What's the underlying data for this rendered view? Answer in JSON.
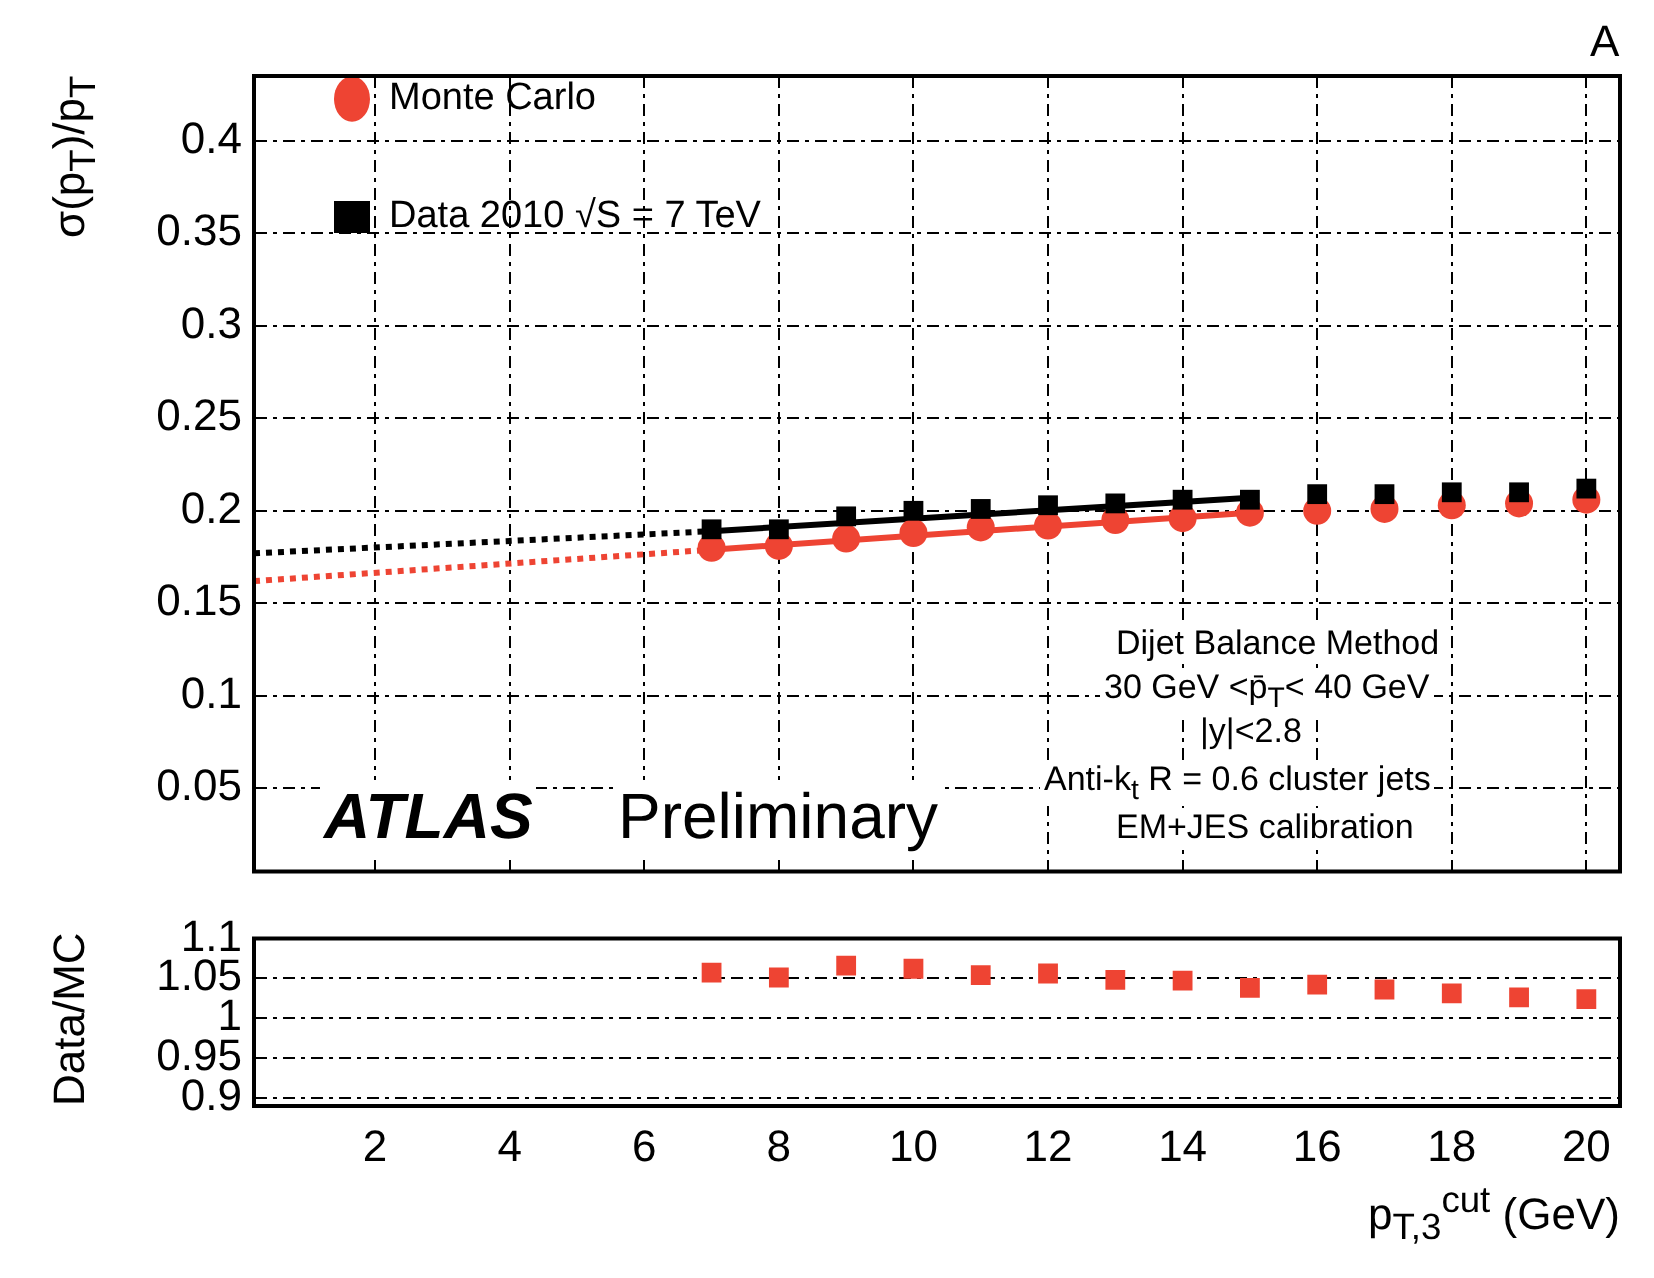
{
  "chart_data": [
    {
      "type": "scatter",
      "ylabel": "σ(p$_{T}$)/p$_{T}$",
      "xlim": [
        0.2,
        20.5
      ],
      "xticks": [
        2,
        4,
        6,
        8,
        10,
        12,
        14,
        16,
        18,
        20
      ],
      "ylim": [
        0.005,
        0.435
      ],
      "yticks": [
        0.05,
        0.1,
        0.15,
        0.2,
        0.25,
        0.3,
        0.35,
        0.4
      ],
      "grid": true,
      "tick_labels": "y",
      "legend": "top left",
      "annotations": [
        "A",
        "ATLAS",
        "Preliminary",
        "Dijet Balance Method",
        "30 GeV <p̄$_{T}$< 40 GeV",
        "|y|<2.8",
        "Anti-k$_{t}$ R = 0.6 cluster jets",
        "EM+JES calibration"
      ],
      "x": [
        7,
        8,
        9,
        10,
        11,
        12,
        13,
        14,
        15,
        16,
        17,
        18,
        19,
        20
      ],
      "series": [
        {
          "type": "line",
          "color": "#ee4433",
          "line_style": "dotted",
          "marker": "none",
          "x": [
            0.2,
            7
          ],
          "values": [
            0.162,
            0.179
          ]
        },
        {
          "type": "line",
          "color": "#ee4433",
          "line_style": "solid",
          "marker": "none",
          "x": [
            7,
            15
          ],
          "values": [
            0.179,
            0.199
          ]
        },
        {
          "type": "line",
          "color": "#000000",
          "line_style": "dotted",
          "marker": "none",
          "x": [
            0.2,
            7
          ],
          "values": [
            0.177,
            0.189
          ]
        },
        {
          "type": "line",
          "color": "#000000",
          "line_style": "solid",
          "marker": "none",
          "x": [
            7,
            15
          ],
          "values": [
            0.189,
            0.207
          ]
        },
        {
          "name": "Monte Carlo",
          "type": "scatter",
          "color": "#ee4433",
          "marker": "circle",
          "values": [
            0.18,
            0.181,
            0.185,
            0.188,
            0.191,
            0.192,
            0.195,
            0.196,
            0.199,
            0.2,
            0.201,
            0.203,
            0.204,
            0.206
          ]
        },
        {
          "name": "Data 2010 √S = 7 TeV",
          "type": "scatter",
          "color": "#000000",
          "marker": "square",
          "values": [
            0.19,
            0.19,
            0.197,
            0.2,
            0.201,
            0.203,
            0.204,
            0.206,
            0.206,
            0.209,
            0.209,
            0.21,
            0.21,
            0.212
          ]
        }
      ]
    },
    {
      "type": "scatter",
      "ylabel": "Data/MC",
      "xlabel": "p$_{T,3}$$^{cut}$ (GeV)",
      "xlim": [
        0.2,
        20.5
      ],
      "xticks": [
        2,
        4,
        6,
        8,
        10,
        12,
        14,
        16,
        18,
        20
      ],
      "ylim": [
        0.89,
        1.1
      ],
      "yticks": [
        0.9,
        0.95,
        1,
        1.05,
        1.1
      ],
      "grid": "y",
      "x": [
        7,
        8,
        9,
        10,
        11,
        12,
        13,
        14,
        15,
        16,
        17,
        18,
        19,
        20
      ],
      "series": [
        {
          "type": "scatter",
          "color": "#ee4433",
          "marker": "square",
          "values": [
            1.057,
            1.051,
            1.066,
            1.062,
            1.054,
            1.056,
            1.048,
            1.047,
            1.038,
            1.042,
            1.036,
            1.031,
            1.026,
            1.024
          ]
        }
      ]
    }
  ]
}
